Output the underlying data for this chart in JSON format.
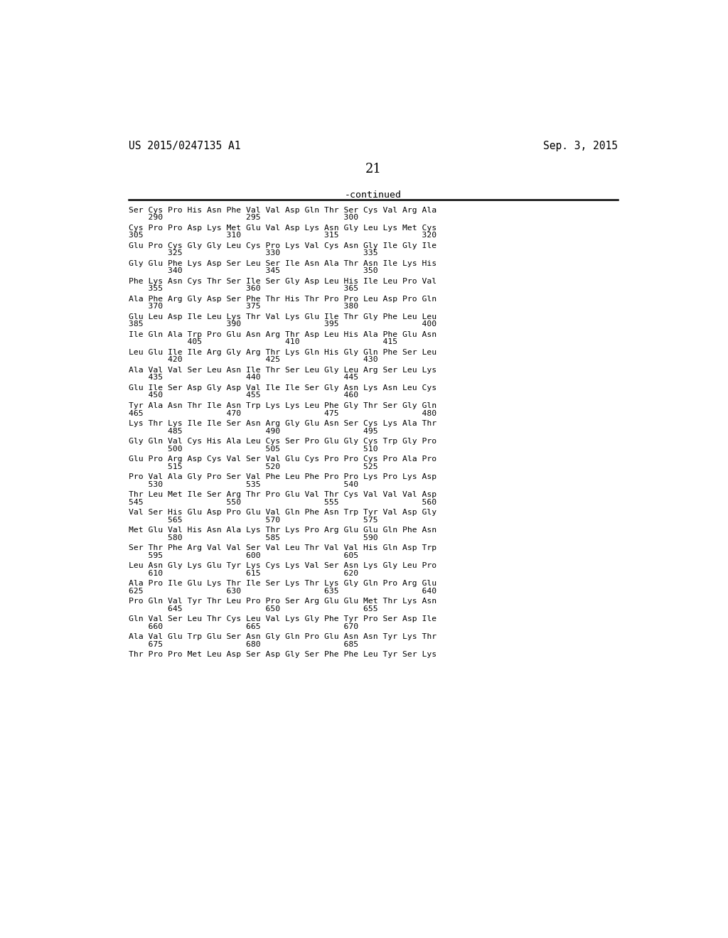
{
  "header_left": "US 2015/0247135 A1",
  "header_right": "Sep. 3, 2015",
  "page_number": "21",
  "continued_text": "-continued",
  "background_color": "#ffffff",
  "text_color": "#000000",
  "seq_blocks": [
    [
      "Ser Cys Pro His Asn Phe Val Val Asp Gln Thr Ser Cys Val Arg Ala",
      "    290                 295                 300"
    ],
    [
      "Cys Pro Pro Asp Lys Met Glu Val Asp Lys Asn Gly Leu Lys Met Cys",
      "305                 310                 315                 320"
    ],
    [
      "Glu Pro Cys Gly Gly Leu Cys Pro Lys Val Cys Asn Gly Ile Gly Ile",
      "        325                 330                 335"
    ],
    [
      "Gly Glu Phe Lys Asp Ser Leu Ser Ile Asn Ala Thr Asn Ile Lys His",
      "        340                 345                 350"
    ],
    [
      "Phe Lys Asn Cys Thr Ser Ile Ser Gly Asp Leu His Ile Leu Pro Val",
      "    355                 360                 365"
    ],
    [
      "Ala Phe Arg Gly Asp Ser Phe Thr His Thr Pro Pro Leu Asp Pro Gln",
      "    370                 375                 380"
    ],
    [
      "Glu Leu Asp Ile Leu Lys Thr Val Lys Glu Ile Thr Gly Phe Leu Leu",
      "385                 390                 395                 400"
    ],
    [
      "Ile Gln Ala Trp Pro Glu Asn Arg Thr Asp Leu His Ala Phe Glu Asn",
      "            405                 410                 415"
    ],
    [
      "Leu Glu Ile Ile Arg Gly Arg Thr Lys Gln His Gly Gln Phe Ser Leu",
      "        420                 425                 430"
    ],
    [
      "Ala Val Val Ser Leu Asn Ile Thr Ser Leu Gly Leu Arg Ser Leu Lys",
      "    435                 440                 445"
    ],
    [
      "Glu Ile Ser Asp Gly Asp Val Ile Ile Ser Gly Asn Lys Asn Leu Cys",
      "    450                 455                 460"
    ],
    [
      "Tyr Ala Asn Thr Ile Asn Trp Lys Lys Leu Phe Gly Thr Ser Gly Gln",
      "465                 470                 475                 480"
    ],
    [
      "Lys Thr Lys Ile Ile Ser Asn Arg Gly Glu Asn Ser Cys Lys Ala Thr",
      "        485                 490                 495"
    ],
    [
      "Gly Gln Val Cys His Ala Leu Cys Ser Pro Glu Gly Cys Trp Gly Pro",
      "        500                 505                 510"
    ],
    [
      "Glu Pro Arg Asp Cys Val Ser Val Glu Cys Pro Pro Cys Pro Ala Pro",
      "        515                 520                 525"
    ],
    [
      "Pro Val Ala Gly Pro Ser Val Phe Leu Phe Pro Pro Lys Pro Lys Asp",
      "    530                 535                 540"
    ],
    [
      "Thr Leu Met Ile Ser Arg Thr Pro Glu Val Thr Cys Val Val Val Asp",
      "545                 550                 555                 560"
    ],
    [
      "Val Ser His Glu Asp Pro Glu Val Gln Phe Asn Trp Tyr Val Asp Gly",
      "        565                 570                 575"
    ],
    [
      "Met Glu Val His Asn Ala Lys Thr Lys Pro Arg Glu Glu Gln Phe Asn",
      "        580                 585                 590"
    ],
    [
      "Ser Thr Phe Arg Val Val Ser Val Leu Thr Val Val His Gln Asp Trp",
      "    595                 600                 605"
    ],
    [
      "Leu Asn Gly Lys Glu Tyr Lys Cys Lys Val Ser Asn Lys Gly Leu Pro",
      "    610                 615                 620"
    ],
    [
      "Ala Pro Ile Glu Lys Thr Ile Ser Lys Thr Lys Gly Gln Pro Arg Glu",
      "625                 630                 635                 640"
    ],
    [
      "Pro Gln Val Tyr Thr Leu Pro Pro Ser Arg Glu Glu Met Thr Lys Asn",
      "        645                 650                 655"
    ],
    [
      "Gln Val Ser Leu Thr Cys Leu Val Lys Gly Phe Tyr Pro Ser Asp Ile",
      "    660                 665                 670"
    ],
    [
      "Ala Val Glu Trp Glu Ser Asn Gly Gln Pro Glu Asn Asn Tyr Lys Thr",
      "    675                 680                 685"
    ],
    [
      "Thr Pro Pro Met Leu Asp Ser Asp Gly Ser Phe Phe Leu Tyr Ser Lys",
      ""
    ]
  ]
}
